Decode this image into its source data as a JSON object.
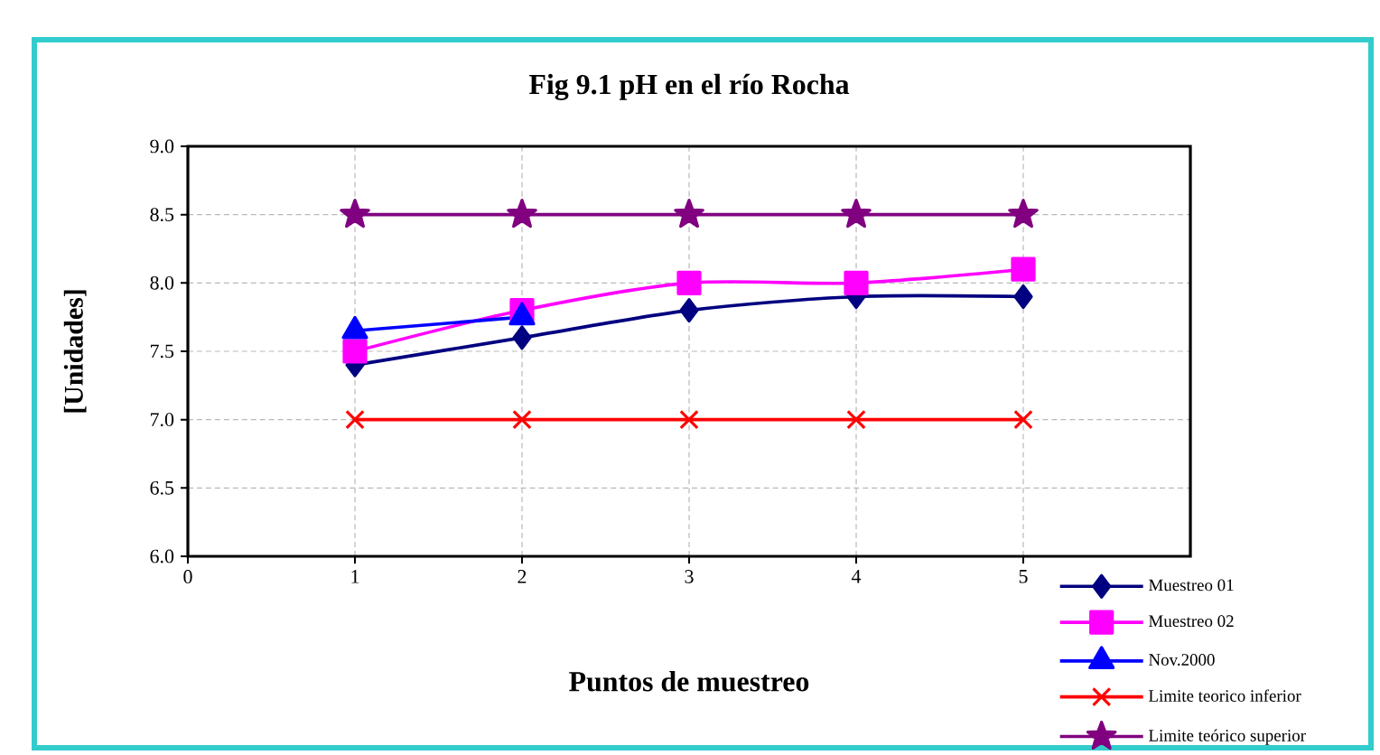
{
  "chart_data": {
    "type": "line",
    "title": "Fig 9.1  pH en el río Rocha",
    "xlabel": "Puntos de muestreo",
    "ylabel": "[Unidades]",
    "x": [
      1,
      2,
      3,
      4,
      5
    ],
    "series": [
      {
        "name": "Muestreo 01",
        "color": "#000080",
        "marker": "diamond",
        "values": [
          7.4,
          7.6,
          7.8,
          7.9,
          7.9
        ]
      },
      {
        "name": "Muestreo 02",
        "color": "#ff00ff",
        "marker": "square",
        "values": [
          7.5,
          7.8,
          8.0,
          8.0,
          8.1
        ]
      },
      {
        "name": "Nov.2000",
        "color": "#0000ff",
        "marker": "triangle",
        "values": [
          7.65,
          7.75,
          null,
          null,
          null
        ]
      },
      {
        "name": "Limite teorico inferior",
        "color": "#ff0000",
        "marker": "cross",
        "values": [
          7.0,
          7.0,
          7.0,
          7.0,
          7.0
        ]
      },
      {
        "name": "Limite teórico superior",
        "color": "#800080",
        "marker": "star",
        "values": [
          8.5,
          8.5,
          8.5,
          8.5,
          8.5
        ]
      }
    ],
    "xlim": [
      0,
      6
    ],
    "xticks": [
      0,
      1,
      2,
      3,
      4,
      5
    ],
    "ylim": [
      6,
      9
    ],
    "yticks": [
      {
        "value": 6,
        "label": "6.0"
      },
      {
        "value": 6.5,
        "label": "6.5"
      },
      {
        "value": 7,
        "label": "7.0"
      },
      {
        "value": 7.5,
        "label": "7.5"
      },
      {
        "value": 8,
        "label": "8.0"
      },
      {
        "value": 8.5,
        "label": "8.5"
      },
      {
        "value": 9,
        "label": "9.0"
      }
    ],
    "grid": true,
    "legend": "bottom right"
  }
}
